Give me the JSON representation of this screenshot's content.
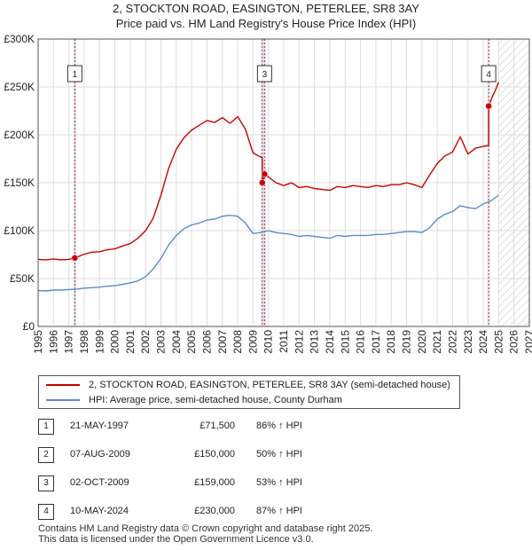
{
  "title_line1": "2, STOCKTON ROAD, EASINGTON, PETERLEE, SR8 3AY",
  "title_line2": "Price paid vs. HM Land Registry's House Price Index (HPI)",
  "colors": {
    "property": "#cc0000",
    "hpi": "#5b8ccc",
    "marker_line": "#cc0000",
    "highlight": "#dde6f5"
  },
  "chart_data": {
    "type": "line",
    "title": "Price paid vs. HM Land Registry's House Price Index (HPI)",
    "xlabel": "",
    "ylabel": "",
    "xlim": [
      1995,
      2027
    ],
    "ylim": [
      0,
      300000
    ],
    "y_ticks": [
      0,
      50000,
      100000,
      150000,
      200000,
      250000,
      300000
    ],
    "y_tick_labels": [
      "£0",
      "£50K",
      "£100K",
      "£150K",
      "£200K",
      "£250K",
      "£300K"
    ],
    "x_ticks": [
      1995,
      1996,
      1997,
      1998,
      1999,
      2000,
      2001,
      2002,
      2003,
      2004,
      2005,
      2006,
      2007,
      2008,
      2009,
      2010,
      2011,
      2012,
      2013,
      2014,
      2015,
      2016,
      2017,
      2018,
      2019,
      2020,
      2021,
      2022,
      2023,
      2024,
      2025,
      2026,
      2027
    ],
    "x_tick_labels": [
      "1995",
      "1996",
      "1997",
      "1998",
      "1999",
      "2000",
      "2001",
      "2002",
      "2003",
      "2004",
      "2005",
      "2006",
      "2007",
      "2008",
      "2009",
      "2010",
      "2011",
      "2012",
      "2013",
      "2014",
      "2015",
      "2016",
      "2017",
      "2018",
      "2019",
      "2020",
      "2021",
      "2022",
      "2023",
      "2024",
      "2025",
      "2026",
      "2027"
    ],
    "forecast_from": 2025.0,
    "series": [
      {
        "name": "2, STOCKTON ROAD, EASINGTON, PETERLEE, SR8 3AY (semi-detached house)",
        "x": [
          1995.0,
          1995.5,
          1996.0,
          1996.5,
          1997.0,
          1997.39,
          1998.0,
          1998.5,
          1999.0,
          1999.5,
          2000.0,
          2000.5,
          2001.0,
          2001.5,
          2002.0,
          2002.5,
          2003.0,
          2003.5,
          2004.0,
          2004.5,
          2005.0,
          2005.5,
          2006.0,
          2006.5,
          2007.0,
          2007.5,
          2008.0,
          2008.5,
          2009.0,
          2009.6,
          2009.6,
          2009.75,
          2010.0,
          2010.5,
          2011.0,
          2011.5,
          2012.0,
          2012.5,
          2013.0,
          2013.5,
          2014.0,
          2014.5,
          2015.0,
          2015.5,
          2016.0,
          2016.5,
          2017.0,
          2017.5,
          2018.0,
          2018.5,
          2019.0,
          2019.5,
          2020.0,
          2020.5,
          2021.0,
          2021.5,
          2022.0,
          2022.5,
          2023.0,
          2023.5,
          2024.0,
          2024.35,
          2024.35,
          2024.6,
          2024.8,
          2025.0
        ],
        "values": [
          70000,
          69500,
          70500,
          69500,
          70000,
          71500,
          75500,
          77500,
          78000,
          80000,
          81000,
          84000,
          86500,
          92000,
          100000,
          113000,
          137000,
          165000,
          185000,
          197000,
          205000,
          210000,
          215000,
          213000,
          218000,
          212000,
          219000,
          206000,
          181000,
          176000,
          150000,
          159000,
          156000,
          150000,
          147000,
          150000,
          145000,
          146000,
          144000,
          143000,
          142000,
          146000,
          145000,
          147000,
          146000,
          145000,
          147000,
          146000,
          148000,
          148000,
          150000,
          148000,
          145000,
          158000,
          170000,
          178000,
          182000,
          198000,
          180000,
          186000,
          188000,
          189000,
          230000,
          240000,
          247000,
          255000
        ]
      },
      {
        "name": "HPI: Average price, semi-detached house, County Durham",
        "x": [
          1995.0,
          1995.5,
          1996.0,
          1996.5,
          1997.0,
          1997.5,
          1998.0,
          1998.5,
          1999.0,
          1999.5,
          2000.0,
          2000.5,
          2001.0,
          2001.5,
          2002.0,
          2002.5,
          2003.0,
          2003.5,
          2004.0,
          2004.5,
          2005.0,
          2005.5,
          2006.0,
          2006.5,
          2007.0,
          2007.5,
          2008.0,
          2008.5,
          2009.0,
          2009.5,
          2010.0,
          2010.5,
          2011.0,
          2011.5,
          2012.0,
          2012.5,
          2013.0,
          2013.5,
          2014.0,
          2014.5,
          2015.0,
          2015.5,
          2016.0,
          2016.5,
          2017.0,
          2017.5,
          2018.0,
          2018.5,
          2019.0,
          2019.5,
          2020.0,
          2020.5,
          2021.0,
          2021.5,
          2022.0,
          2022.5,
          2023.0,
          2023.5,
          2024.0,
          2024.5,
          2025.0
        ],
        "values": [
          37500,
          37000,
          38000,
          38000,
          38500,
          39000,
          40000,
          40500,
          41000,
          42000,
          42500,
          44000,
          45500,
          47500,
          52000,
          60000,
          71000,
          85000,
          95000,
          102000,
          106000,
          108000,
          111000,
          112000,
          115000,
          116000,
          115000,
          108000,
          97000,
          98000,
          100000,
          98000,
          97000,
          96000,
          94000,
          95000,
          94000,
          93000,
          92000,
          95000,
          94000,
          95000,
          95000,
          95000,
          96000,
          96000,
          97000,
          98000,
          99000,
          99000,
          98000,
          103000,
          112000,
          117000,
          120000,
          126000,
          124000,
          123000,
          128000,
          131000,
          137000
        ]
      }
    ],
    "sales": [
      {
        "label": "1",
        "x": 1997.39,
        "value": 71500
      },
      {
        "label": "2",
        "x": 2009.6,
        "value": 150000
      },
      {
        "label": "3",
        "x": 2009.75,
        "value": 159000
      },
      {
        "label": "4",
        "x": 2024.35,
        "value": 230000
      }
    ],
    "marker_boxes": [
      {
        "label": "1",
        "x": 1997.39
      },
      {
        "label": "3",
        "x": 2009.75
      },
      {
        "label": "4",
        "x": 2024.35
      }
    ]
  },
  "legend": {
    "property_label": "2, STOCKTON ROAD, EASINGTON, PETERLEE, SR8 3AY (semi-detached house)",
    "hpi_label": "HPI: Average price, semi-detached house, County Durham"
  },
  "transactions": [
    {
      "num": "1",
      "date": "21-MAY-1997",
      "price": "£71,500",
      "hpi": "86% ↑ HPI"
    },
    {
      "num": "2",
      "date": "07-AUG-2009",
      "price": "£150,000",
      "hpi": "50% ↑ HPI"
    },
    {
      "num": "3",
      "date": "02-OCT-2009",
      "price": "£159,000",
      "hpi": "53% ↑ HPI"
    },
    {
      "num": "4",
      "date": "10-MAY-2024",
      "price": "£230,000",
      "hpi": "87% ↑ HPI"
    }
  ],
  "footer": {
    "line1": "Contains HM Land Registry data © Crown copyright and database right 2025.",
    "line2": "This data is licensed under the Open Government Licence v3.0."
  }
}
